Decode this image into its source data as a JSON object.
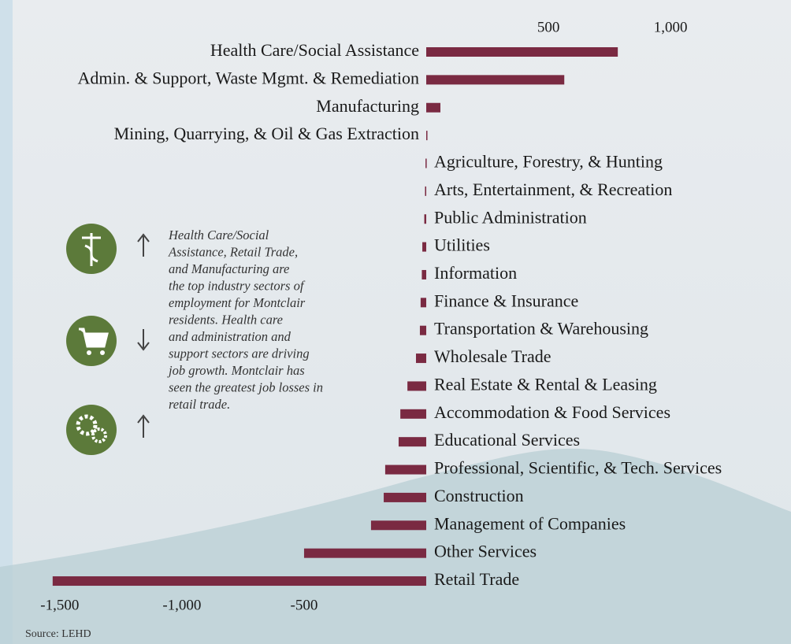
{
  "chart_data": {
    "type": "bar",
    "orientation": "horizontal",
    "color": "#7a2a42",
    "categories": [
      "Health Care/Social Assistance",
      "Admin. & Support, Waste Mgmt. & Remediation",
      "Manufacturing",
      "Mining, Quarrying, & Oil & Gas Extraction",
      "Agriculture, Forestry, & Hunting",
      "Arts, Entertainment, & Recreation",
      "Public Administration",
      "Utilities",
      "Information",
      "Finance & Insurance",
      "Transportation & Warehousing",
      "Wholesale Trade",
      "Real Estate & Rental & Leasing",
      "Accommodation & Food Services",
      "Educational Services",
      "Professional, Scientific, & Tech. Services",
      "Construction",
      "Management of Companies",
      "Other Services",
      "Retail Trade"
    ],
    "values": [
      784,
      565,
      58,
      3,
      -3,
      -5,
      -8,
      -16,
      -18,
      -23,
      -26,
      -42,
      -77,
      -106,
      -113,
      -168,
      -174,
      -226,
      -500,
      -1529
    ],
    "xlim": [
      -1680,
      1480
    ],
    "xticks_top": [
      {
        "value": 500,
        "label": "500"
      },
      {
        "value": 1000,
        "label": "1,000"
      }
    ],
    "xticks_bottom": [
      {
        "value": -1500,
        "label": "-1,500"
      },
      {
        "value": -1000,
        "label": "-1,000"
      },
      {
        "value": -500,
        "label": "-500"
      }
    ],
    "annotation": [
      "Health Care/Social",
      "Assistance, Retail Trade,",
      "and Manufacturing are",
      "the top industry sectors of",
      "employment for Montclair",
      "residents. Health care",
      "and administration and",
      "support sectors are driving",
      "job growth.  Montclair has",
      "seen the greatest job losses in",
      "retail trade."
    ],
    "source": "Source: LEHD"
  }
}
